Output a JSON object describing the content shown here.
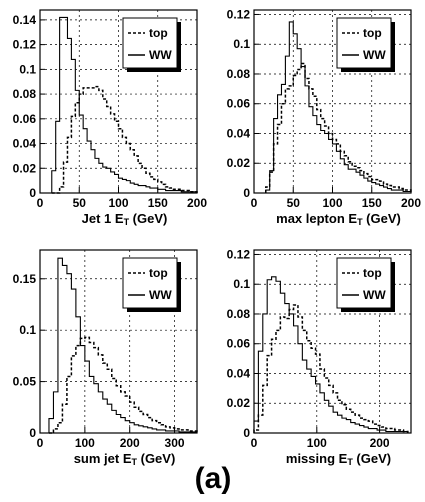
{
  "caption": "(a)",
  "chart_data": [
    {
      "type": "line",
      "xlabel": "Jet 1 E",
      "xlabel_sub": "T",
      "xlabel_unit": " (GeV)",
      "xlim": [
        0,
        200
      ],
      "ylim": [
        0,
        0.148
      ],
      "xticks": [
        0,
        50,
        100,
        150,
        200
      ],
      "yticks": [
        0,
        0.02,
        0.04,
        0.06,
        0.08,
        0.1,
        0.12,
        0.14
      ],
      "yticklabels": [
        "0",
        "0.02",
        "0.04",
        "0.06",
        "0.08",
        "0.1",
        "0.12",
        "0.14"
      ],
      "grid": true,
      "legend_position": "top-right",
      "bin_edges": [
        15,
        20,
        25,
        30,
        35,
        40,
        45,
        50,
        55,
        60,
        65,
        70,
        75,
        80,
        85,
        90,
        95,
        100,
        105,
        110,
        115,
        120,
        125,
        130,
        135,
        140,
        145,
        150,
        155,
        160,
        165,
        170,
        175,
        180,
        185,
        190,
        195,
        200
      ],
      "series": [
        {
          "name": "top",
          "style": "dashed",
          "values": [
            0,
            0,
            0.005,
            0.025,
            0.045,
            0.062,
            0.073,
            0.08,
            0.085,
            0.085,
            0.085,
            0.086,
            0.083,
            0.076,
            0.07,
            0.064,
            0.058,
            0.052,
            0.045,
            0.04,
            0.035,
            0.03,
            0.024,
            0.02,
            0.016,
            0.013,
            0.011,
            0.009,
            0.007,
            0.005,
            0.004,
            0.003,
            0.003,
            0.002,
            0.002,
            0.001,
            0.001
          ]
        },
        {
          "name": "WW",
          "style": "solid",
          "values": [
            0.018,
            0.058,
            0.142,
            0.142,
            0.125,
            0.108,
            0.083,
            0.063,
            0.052,
            0.042,
            0.035,
            0.028,
            0.024,
            0.021,
            0.02,
            0.017,
            0.015,
            0.012,
            0.011,
            0.01,
            0.008,
            0.007,
            0.006,
            0.006,
            0.005,
            0.004,
            0.004,
            0.003,
            0.003,
            0.002,
            0.002,
            0.002,
            0.002,
            0.001,
            0.001,
            0.001,
            0.001
          ]
        }
      ]
    },
    {
      "type": "line",
      "xlabel": "max lepton E",
      "xlabel_sub": "T",
      "xlabel_unit": " (GeV)",
      "xlim": [
        0,
        200
      ],
      "ylim": [
        0,
        0.123
      ],
      "xticks": [
        0,
        50,
        100,
        150,
        200
      ],
      "yticks": [
        0,
        0.02,
        0.04,
        0.06,
        0.08,
        0.1,
        0.12
      ],
      "yticklabels": [
        "0",
        "0.02",
        "0.04",
        "0.06",
        "0.08",
        "0.1",
        "0.12"
      ],
      "grid": true,
      "legend_position": "top-right",
      "bin_edges": [
        15,
        20,
        25,
        30,
        35,
        40,
        45,
        50,
        55,
        60,
        65,
        70,
        75,
        80,
        85,
        90,
        95,
        100,
        105,
        110,
        115,
        120,
        125,
        130,
        135,
        140,
        145,
        150,
        155,
        160,
        165,
        170,
        175,
        180,
        185,
        190,
        195,
        200
      ],
      "series": [
        {
          "name": "top",
          "style": "dashed",
          "values": [
            0.004,
            0.014,
            0.033,
            0.046,
            0.06,
            0.07,
            0.072,
            0.079,
            0.083,
            0.087,
            0.077,
            0.07,
            0.065,
            0.056,
            0.05,
            0.045,
            0.04,
            0.036,
            0.033,
            0.028,
            0.025,
            0.021,
            0.018,
            0.017,
            0.015,
            0.013,
            0.011,
            0.009,
            0.009,
            0.008,
            0.006,
            0.005,
            0.004,
            0.004,
            0.003,
            0.002,
            0.002
          ]
        },
        {
          "name": "WW",
          "style": "solid",
          "values": [
            0.002,
            0.015,
            0.05,
            0.066,
            0.073,
            0.092,
            0.115,
            0.107,
            0.097,
            0.085,
            0.072,
            0.058,
            0.052,
            0.046,
            0.042,
            0.04,
            0.036,
            0.033,
            0.028,
            0.023,
            0.019,
            0.016,
            0.016,
            0.014,
            0.012,
            0.01,
            0.008,
            0.007,
            0.006,
            0.005,
            0.004,
            0.003,
            0.002,
            0.002,
            0.002,
            0.001,
            0.001
          ]
        }
      ]
    },
    {
      "type": "line",
      "xlabel": "sum jet E",
      "xlabel_sub": "T",
      "xlabel_unit": " (GeV)",
      "xlim": [
        0,
        350
      ],
      "ylim": [
        0,
        0.178
      ],
      "xticks": [
        0,
        100,
        200,
        300
      ],
      "yticks": [
        0,
        0.05,
        0.1,
        0.15
      ],
      "yticklabels": [
        "0",
        "0.05",
        "0.1",
        "0.15"
      ],
      "grid": true,
      "legend_position": "top-right",
      "bin_edges": [
        20,
        30,
        40,
        50,
        60,
        70,
        80,
        90,
        100,
        110,
        120,
        130,
        140,
        150,
        160,
        170,
        180,
        190,
        200,
        210,
        220,
        230,
        240,
        250,
        260,
        270,
        280,
        290,
        300,
        310,
        320,
        330,
        340,
        350
      ],
      "series": [
        {
          "name": "top",
          "style": "dashed",
          "values": [
            0,
            0.004,
            0.01,
            0.028,
            0.055,
            0.075,
            0.085,
            0.092,
            0.093,
            0.088,
            0.083,
            0.076,
            0.068,
            0.062,
            0.053,
            0.046,
            0.04,
            0.036,
            0.03,
            0.025,
            0.021,
            0.018,
            0.015,
            0.012,
            0.01,
            0.008,
            0.006,
            0.005,
            0.004,
            0.003,
            0.003,
            0.002,
            0.002
          ]
        },
        {
          "name": "WW",
          "style": "solid",
          "values": [
            0.014,
            0.04,
            0.17,
            0.163,
            0.155,
            0.14,
            0.113,
            0.085,
            0.07,
            0.055,
            0.048,
            0.04,
            0.033,
            0.028,
            0.022,
            0.018,
            0.015,
            0.012,
            0.01,
            0.008,
            0.007,
            0.006,
            0.005,
            0.004,
            0.003,
            0.003,
            0.002,
            0.002,
            0.002,
            0.001,
            0.001,
            0.001,
            0.001
          ]
        }
      ]
    },
    {
      "type": "line",
      "xlabel": "missing E",
      "xlabel_sub": "T",
      "xlabel_unit": " (GeV)",
      "xlim": [
        0,
        250
      ],
      "ylim": [
        0,
        0.123
      ],
      "xticks": [
        0,
        100,
        200
      ],
      "yticks": [
        0,
        0.02,
        0.04,
        0.06,
        0.08,
        0.1,
        0.12
      ],
      "yticklabels": [
        "0",
        "0.02",
        "0.04",
        "0.06",
        "0.08",
        "0.1",
        "0.12"
      ],
      "grid": true,
      "legend_position": "top-right",
      "bin_edges": [
        0,
        7,
        14,
        21,
        28,
        35,
        42,
        49,
        56,
        63,
        70,
        77,
        84,
        91,
        98,
        105,
        112,
        119,
        126,
        133,
        140,
        147,
        154,
        161,
        168,
        175,
        182,
        189,
        196,
        203,
        210,
        217,
        224,
        231,
        238,
        245
      ],
      "series": [
        {
          "name": "top",
          "style": "dashed",
          "values": [
            0.002,
            0.012,
            0.032,
            0.052,
            0.063,
            0.069,
            0.078,
            0.077,
            0.083,
            0.086,
            0.078,
            0.069,
            0.062,
            0.057,
            0.053,
            0.043,
            0.037,
            0.032,
            0.027,
            0.022,
            0.019,
            0.016,
            0.014,
            0.012,
            0.01,
            0.009,
            0.008,
            0.006,
            0.005,
            0.004,
            0.003,
            0.003,
            0.002,
            0.002,
            0.001
          ]
        },
        {
          "name": "WW",
          "style": "solid",
          "values": [
            0.008,
            0.055,
            0.08,
            0.103,
            0.105,
            0.102,
            0.094,
            0.087,
            0.08,
            0.072,
            0.06,
            0.049,
            0.043,
            0.038,
            0.033,
            0.027,
            0.022,
            0.018,
            0.014,
            0.012,
            0.01,
            0.009,
            0.007,
            0.006,
            0.005,
            0.004,
            0.003,
            0.003,
            0.002,
            0.002,
            0.001,
            0.001,
            0.001,
            0.001,
            0.001
          ]
        }
      ]
    }
  ]
}
